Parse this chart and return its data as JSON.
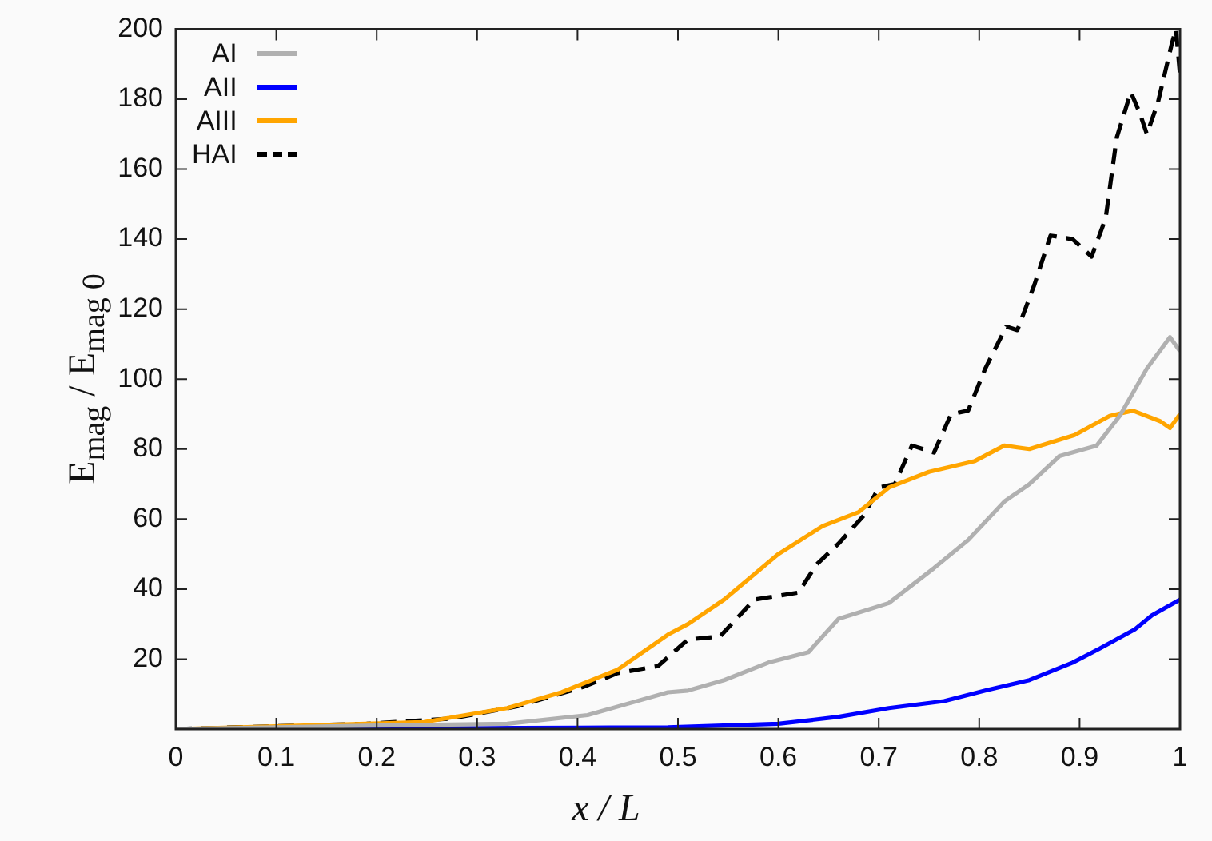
{
  "chart_data": {
    "type": "line",
    "xlabel": "x / L",
    "ylabel": "E$_{mag}$ / E$_{mag 0}$",
    "xlim": [
      0,
      1
    ],
    "ylim": [
      0,
      200
    ],
    "xticks": [
      0,
      0.1,
      0.2,
      0.3,
      0.4,
      0.5,
      0.6,
      0.7,
      0.8,
      0.9,
      1
    ],
    "yticks": [
      20,
      40,
      60,
      80,
      100,
      120,
      140,
      160,
      180,
      200
    ],
    "grid": false,
    "legend": "top left",
    "marker": "none",
    "series": [
      {
        "name": "AI",
        "color": "#b0b0b0",
        "line_style": "solid",
        "x": [
          0,
          0.1,
          0.2,
          0.33,
          0.41,
          0.49,
          0.51,
          0.546,
          0.59,
          0.63,
          0.66,
          0.71,
          0.755,
          0.789,
          0.825,
          0.85,
          0.88,
          0.917,
          0.94,
          0.967,
          0.99,
          1
        ],
        "values": [
          0,
          0.5,
          1,
          1.5,
          4,
          10.5,
          11,
          14,
          19,
          22,
          31.5,
          36,
          46,
          54,
          65,
          70,
          78,
          81,
          89.5,
          103,
          112,
          108
        ]
      },
      {
        "name": "AII",
        "color": "#0000ff",
        "line_style": "solid",
        "x": [
          0,
          0.2,
          0.4,
          0.49,
          0.6,
          0.66,
          0.71,
          0.765,
          0.806,
          0.85,
          0.893,
          0.92,
          0.955,
          0.972,
          1
        ],
        "values": [
          0,
          0.2,
          0.4,
          0.5,
          1.5,
          3.5,
          6,
          8,
          11,
          14,
          19,
          23,
          28.5,
          32.5,
          37
        ]
      },
      {
        "name": "AIII",
        "color": "#ffa500",
        "line_style": "solid",
        "x": [
          0,
          0.1,
          0.247,
          0.33,
          0.384,
          0.44,
          0.49,
          0.51,
          0.546,
          0.6,
          0.644,
          0.68,
          0.71,
          0.75,
          0.795,
          0.825,
          0.85,
          0.895,
          0.93,
          0.953,
          0.98,
          0.99,
          1
        ],
        "values": [
          0,
          0.8,
          2,
          6,
          10.5,
          17,
          27,
          30,
          37,
          50,
          58,
          62,
          69,
          73.5,
          76.5,
          81,
          80,
          84,
          89.5,
          91,
          88,
          86,
          90
        ]
      },
      {
        "name": "HAI",
        "color": "#000000",
        "line_style": "dashed",
        "x": [
          0,
          0.1,
          0.19,
          0.274,
          0.34,
          0.405,
          0.44,
          0.48,
          0.51,
          0.542,
          0.576,
          0.62,
          0.638,
          0.66,
          0.685,
          0.7,
          0.716,
          0.733,
          0.755,
          0.772,
          0.789,
          0.806,
          0.827,
          0.838,
          0.855,
          0.871,
          0.893,
          0.912,
          0.926,
          0.937,
          0.951,
          0.96,
          0.967,
          0.978,
          0.992,
          0.996,
          1
        ],
        "values": [
          0,
          0.8,
          1.5,
          3,
          6.5,
          12,
          16,
          18,
          25.6,
          26.5,
          37,
          39,
          47,
          53,
          61,
          69,
          70,
          81,
          79,
          90,
          91,
          103,
          115,
          114,
          127,
          141,
          140,
          135,
          146,
          169,
          182,
          176,
          170,
          179,
          196,
          200,
          187
        ]
      }
    ]
  }
}
